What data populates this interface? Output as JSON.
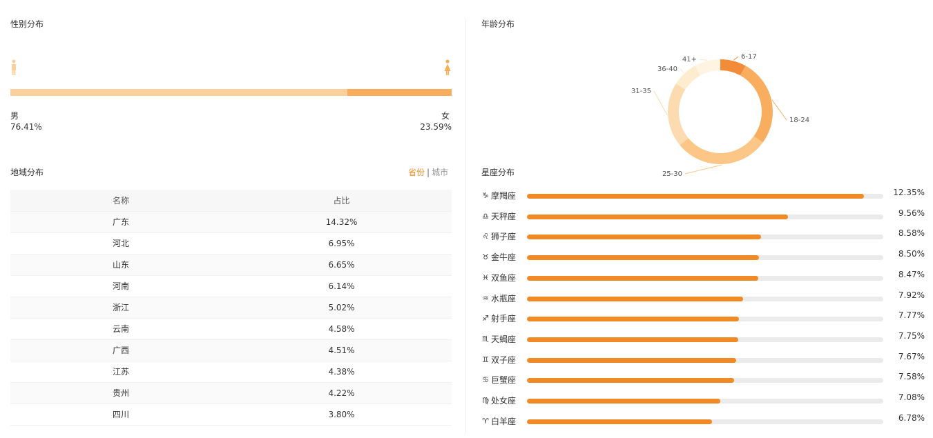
{
  "gender": {
    "title": "性别分布",
    "male": {
      "label": "男",
      "percent_text": "76.41%",
      "percent": 76.41,
      "color": "#fcd09a"
    },
    "female": {
      "label": "女",
      "percent_text": "23.59%",
      "percent": 23.59,
      "color": "#f9ad5c"
    }
  },
  "region": {
    "title": "地域分布",
    "tabs": {
      "province": "省份",
      "separator": "|",
      "city": "城市"
    },
    "columns": [
      "名称",
      "占比"
    ],
    "rows": [
      [
        "广东",
        "14.32%"
      ],
      [
        "河北",
        "6.95%"
      ],
      [
        "山东",
        "6.65%"
      ],
      [
        "河南",
        "6.14%"
      ],
      [
        "浙江",
        "5.02%"
      ],
      [
        "云南",
        "4.58%"
      ],
      [
        "广西",
        "4.51%"
      ],
      [
        "江苏",
        "4.38%"
      ],
      [
        "贵州",
        "4.22%"
      ],
      [
        "四川",
        "3.80%"
      ]
    ]
  },
  "chart_data": {
    "type": "pie",
    "title": "年龄分布",
    "categories": [
      "6-17",
      "18-24",
      "25-30",
      "31-35",
      "36-40",
      "41+"
    ],
    "values": [
      8,
      27,
      29,
      20,
      8,
      8
    ],
    "colors": [
      "#f28c38",
      "#f9ae5f",
      "#fcc687",
      "#fddbb0",
      "#feeccf",
      "#fff4e2"
    ],
    "donut": true
  },
  "zodiac": {
    "title": "星座分布",
    "items": [
      {
        "icon": "♑",
        "icon_name": "capricorn-icon",
        "name": "摩羯座",
        "percent_text": "12.35%",
        "percent": 12.35
      },
      {
        "icon": "♎",
        "icon_name": "libra-icon",
        "name": "天秤座",
        "percent_text": "9.56%",
        "percent": 9.56
      },
      {
        "icon": "♌",
        "icon_name": "leo-icon",
        "name": "狮子座",
        "percent_text": "8.58%",
        "percent": 8.58
      },
      {
        "icon": "♉",
        "icon_name": "taurus-icon",
        "name": "金牛座",
        "percent_text": "8.50%",
        "percent": 8.5
      },
      {
        "icon": "♓",
        "icon_name": "pisces-icon",
        "name": "双鱼座",
        "percent_text": "8.47%",
        "percent": 8.47
      },
      {
        "icon": "♒",
        "icon_name": "aquarius-icon",
        "name": "水瓶座",
        "percent_text": "7.92%",
        "percent": 7.92
      },
      {
        "icon": "♐",
        "icon_name": "sagittarius-icon",
        "name": "射手座",
        "percent_text": "7.77%",
        "percent": 7.77
      },
      {
        "icon": "♏",
        "icon_name": "scorpio-icon",
        "name": "天蝎座",
        "percent_text": "7.75%",
        "percent": 7.75
      },
      {
        "icon": "♊",
        "icon_name": "gemini-icon",
        "name": "双子座",
        "percent_text": "7.67%",
        "percent": 7.67
      },
      {
        "icon": "♋",
        "icon_name": "cancer-icon",
        "name": "巨蟹座",
        "percent_text": "7.58%",
        "percent": 7.58
      },
      {
        "icon": "♍",
        "icon_name": "virgo-icon",
        "name": "处女座",
        "percent_text": "7.08%",
        "percent": 7.08
      },
      {
        "icon": "♈",
        "icon_name": "aries-icon",
        "name": "白羊座",
        "percent_text": "6.78%",
        "percent": 6.78
      }
    ],
    "bar_color": "#f08a24",
    "track_color": "#ebebeb"
  }
}
